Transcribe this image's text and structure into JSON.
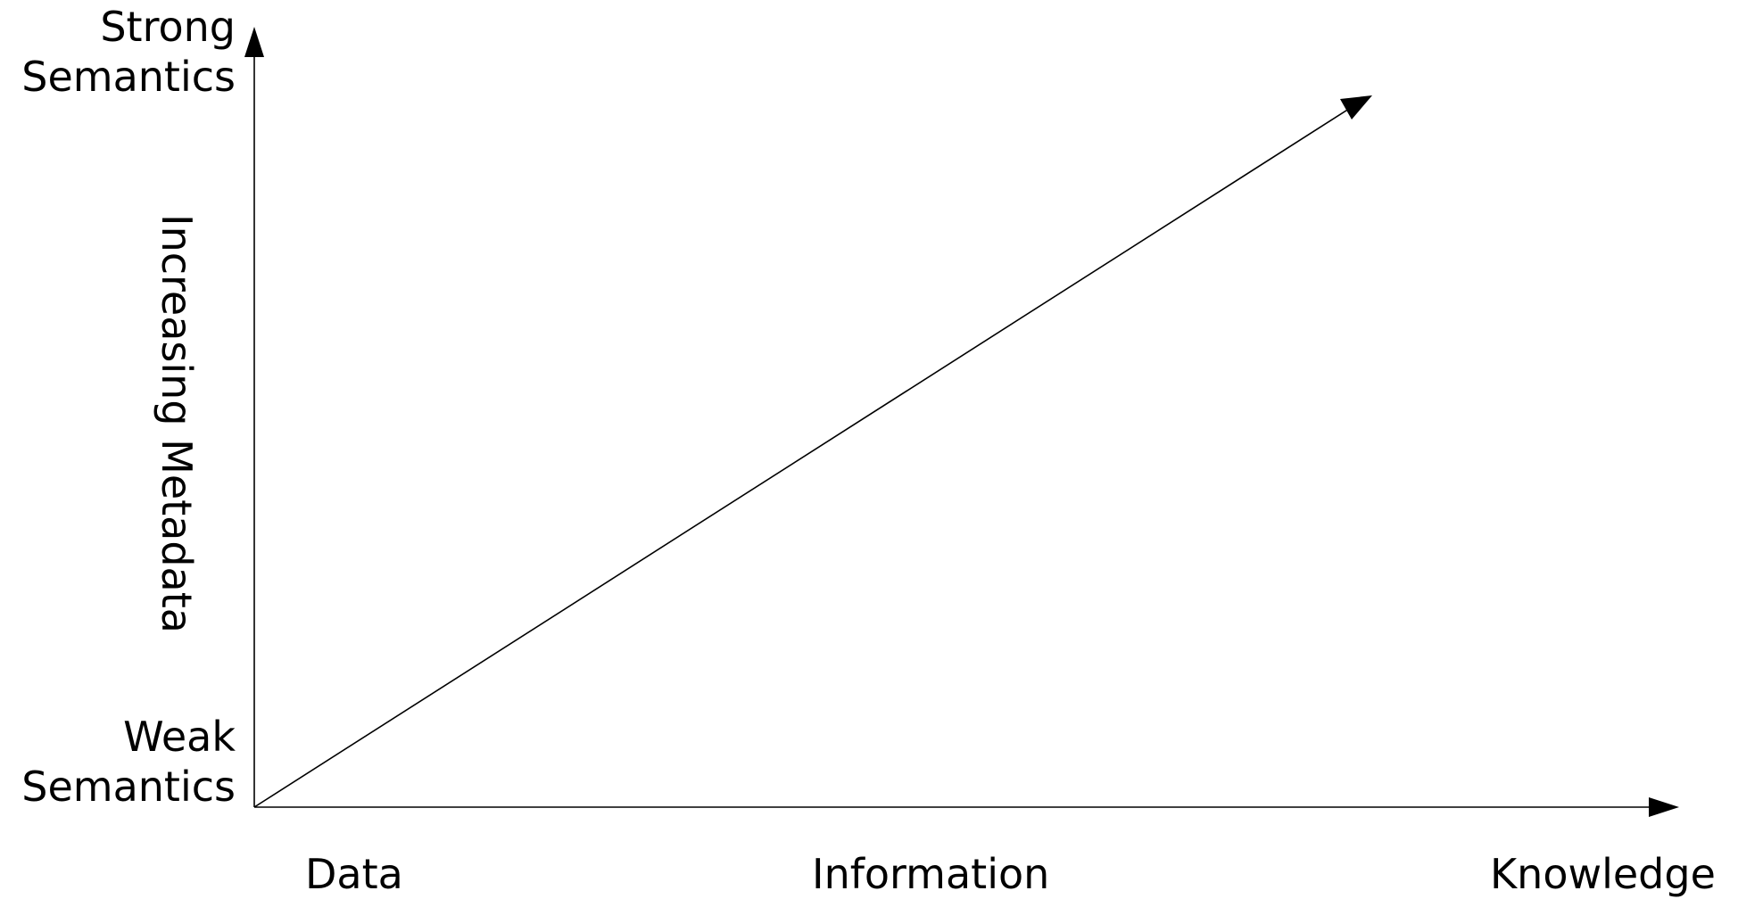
{
  "diagram": {
    "y_axis": {
      "top_label": [
        "Strong",
        "Semantics"
      ],
      "bottom_label": [
        "Weak",
        "Semantics"
      ],
      "title": "Increasing Metadata"
    },
    "x_axis": {
      "labels": [
        "Data",
        "Information",
        "Knowledge"
      ]
    },
    "colors": {
      "stroke": "#000000",
      "background": "#ffffff"
    }
  }
}
